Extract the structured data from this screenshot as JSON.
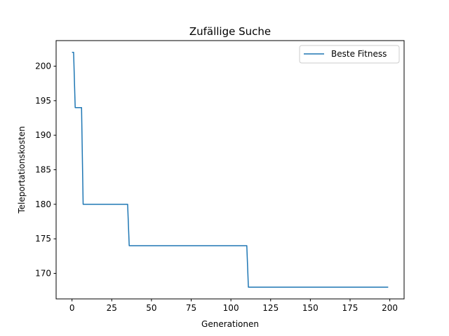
{
  "chart_data": {
    "type": "line",
    "title": "Zufällige Suche",
    "xlabel": "Generationen",
    "ylabel": "Teleportationskosten",
    "xlim": [
      -10,
      209
    ],
    "ylim": [
      166.3,
      203.7
    ],
    "xticks": [
      0,
      25,
      50,
      75,
      100,
      125,
      150,
      175,
      200
    ],
    "yticks": [
      170,
      175,
      180,
      185,
      190,
      195,
      200
    ],
    "grid": false,
    "legend_position": "top-right",
    "series": [
      {
        "name": "Beste Fitness",
        "color": "#1f77b4",
        "step": "post",
        "x": [
          0,
          1,
          2,
          6,
          7,
          35,
          36,
          110,
          111,
          199
        ],
        "y": [
          202,
          202,
          194,
          194,
          180,
          180,
          174,
          174,
          168,
          168
        ]
      }
    ]
  }
}
